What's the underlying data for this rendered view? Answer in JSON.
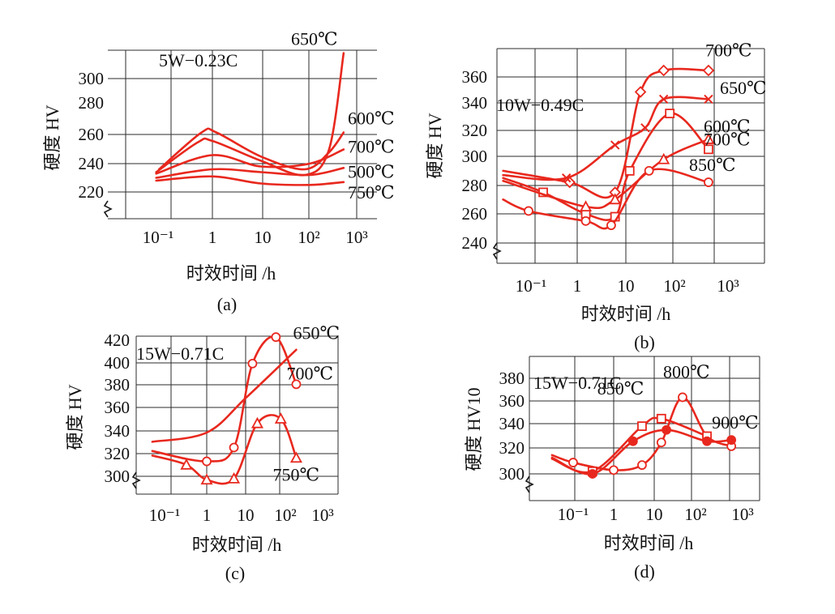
{
  "chart_data": [
    {
      "panel": "(a)",
      "type": "line",
      "title": "5W−0.23C",
      "xlabel": "时效时间 /h",
      "ylabel": "硬度 HV",
      "x_scale": "log",
      "xticks": [
        "10⁻¹",
        "1",
        "10",
        "10²",
        "10³"
      ],
      "yticks": [
        "220",
        "240",
        "260",
        "280",
        "300"
      ],
      "ylim": [
        215,
        320
      ],
      "series": [
        {
          "name": "650℃",
          "label_at": [
            500,
            318
          ],
          "points": [
            [
              0.07,
              234
            ],
            [
              0.5,
              255
            ],
            [
              1,
              256
            ],
            [
              10,
              242
            ],
            [
              80,
              232
            ],
            [
              250,
              250
            ],
            [
              500,
              318
            ]
          ]
        },
        {
          "name": "600℃",
          "label_at": [
            500,
            262
          ],
          "points": [
            [
              0.08,
              236
            ],
            [
              0.6,
              262
            ],
            [
              1.2,
              262
            ],
            [
              10,
              245
            ],
            [
              80,
              236
            ],
            [
              250,
              248
            ],
            [
              500,
              262
            ]
          ]
        },
        {
          "name": "700℃",
          "label_at": [
            500,
            250
          ],
          "points": [
            [
              0.07,
              233
            ],
            [
              1,
              246
            ],
            [
              10,
              238
            ],
            [
              100,
              240
            ],
            [
              500,
              250
            ]
          ]
        },
        {
          "name": "500℃",
          "label_at": [
            500,
            237
          ],
          "points": [
            [
              0.07,
              230
            ],
            [
              1,
              236
            ],
            [
              10,
              234
            ],
            [
              100,
              232
            ],
            [
              500,
              237
            ]
          ]
        },
        {
          "name": "750℃",
          "label_at": [
            500,
            227
          ],
          "points": [
            [
              0.07,
              228
            ],
            [
              1,
              231
            ],
            [
              10,
              226
            ],
            [
              100,
              225
            ],
            [
              500,
              227
            ]
          ]
        }
      ]
    },
    {
      "panel": "(b)",
      "type": "line",
      "title": "10W−0.49C",
      "xlabel": "时效时间 /h",
      "ylabel": "硬度 HV",
      "x_scale": "log",
      "xticks": [
        "10⁻¹",
        "1",
        "10",
        "10²",
        "10³"
      ],
      "yticks": [
        "240",
        "260",
        "280",
        "300",
        "320",
        "340",
        "360"
      ],
      "ylim": [
        233,
        370
      ],
      "series": [
        {
          "name": "700℃",
          "label_at": [
            500,
            362
          ],
          "marker": "diamond",
          "points": [
            [
              0.03,
              290
            ],
            [
              0.7,
              282
            ],
            [
              6,
              275
            ],
            [
              20,
              345
            ],
            [
              60,
              360
            ],
            [
              500,
              360
            ]
          ]
        },
        {
          "name": "650℃",
          "label_at": [
            500,
            339
          ],
          "marker": "x",
          "points": [
            [
              0.03,
              287
            ],
            [
              0.6,
              285
            ],
            [
              6,
              308
            ],
            [
              25,
              320
            ],
            [
              60,
              340
            ],
            [
              500,
              340
            ]
          ]
        },
        {
          "name": "600℃",
          "label_at": [
            500,
            310
          ],
          "marker": "square",
          "points": [
            [
              0.03,
              285
            ],
            [
              0.2,
              275
            ],
            [
              1.5,
              260
            ],
            [
              6,
              258
            ],
            [
              12,
              290
            ],
            [
              80,
              330
            ],
            [
              500,
              305
            ]
          ]
        },
        {
          "name": "700℃",
          "label_at": [
            500,
            311
          ],
          "marker": "triangle",
          "points": [
            [
              0.03,
              283
            ],
            [
              1.5,
              265
            ],
            [
              6,
              270
            ],
            [
              60,
              298
            ],
            [
              500,
              312
            ]
          ]
        },
        {
          "name": "850℃",
          "label_at": [
            500,
            282
          ],
          "marker": "circle",
          "points": [
            [
              0.03,
              270
            ],
            [
              0.1,
              262
            ],
            [
              1.5,
              255
            ],
            [
              5,
              252
            ],
            [
              30,
              290
            ],
            [
              500,
              282
            ]
          ]
        }
      ]
    },
    {
      "panel": "(c)",
      "type": "line",
      "title": "15W−0.71C",
      "xlabel": "时效时间 /h",
      "ylabel": "硬度 HV",
      "x_scale": "log",
      "xticks": [
        "10⁻¹",
        "1",
        "10",
        "10²",
        "10³"
      ],
      "yticks": [
        "300",
        "320",
        "340",
        "360",
        "380",
        "400",
        "420"
      ],
      "ylim": [
        292,
        428
      ],
      "series": [
        {
          "name": "650℃",
          "label_at": [
            200,
            418
          ],
          "marker": "none",
          "points": [
            [
              0.04,
              330
            ],
            [
              1,
              338
            ],
            [
              10,
              368
            ],
            [
              200,
              410
            ]
          ]
        },
        {
          "name": "700℃",
          "label_at": [
            200,
            380
          ],
          "marker": "circle",
          "points": [
            [
              0.04,
              322
            ],
            [
              1,
              313
            ],
            [
              5,
              325
            ],
            [
              15,
              398
            ],
            [
              60,
              421
            ],
            [
              200,
              380
            ]
          ]
        },
        {
          "name": "750℃",
          "label_at": [
            200,
            316
          ],
          "marker": "triangle",
          "points": [
            [
              0.04,
              318
            ],
            [
              0.3,
              310
            ],
            [
              1,
              297
            ],
            [
              5,
              298
            ],
            [
              20,
              346
            ],
            [
              80,
              350
            ],
            [
              200,
              316
            ]
          ]
        }
      ]
    },
    {
      "panel": "(d)",
      "type": "line",
      "title": "15W−0.71C",
      "xlabel": "时效时间 /h",
      "ylabel": "硬度 HV10",
      "x_scale": "log",
      "xticks": [
        "10⁻¹",
        "1",
        "10",
        "10²",
        "10³"
      ],
      "yticks": [
        "300",
        "320",
        "340",
        "360",
        "380"
      ],
      "ylim": [
        293,
        385
      ],
      "series": [
        {
          "name": "800℃",
          "label_at": [
            50,
            361
          ],
          "marker": "circle",
          "points": [
            [
              0.03,
              315
            ],
            [
              0.1,
              309
            ],
            [
              1,
              303
            ],
            [
              5,
              307
            ],
            [
              15,
              325
            ],
            [
              50,
              361
            ],
            [
              200,
              330
            ],
            [
              800,
              322
            ]
          ]
        },
        {
          "name": "850℃",
          "label_at": [
            15,
            344
          ],
          "marker": "square",
          "points": [
            [
              0.03,
              312
            ],
            [
              0.3,
              302
            ],
            [
              5,
              338
            ],
            [
              15,
              344
            ],
            [
              200,
              330
            ]
          ]
        },
        {
          "name": "900℃",
          "label_at": [
            800,
            327
          ],
          "marker": "filled-circle",
          "points": [
            [
              0.03,
              313
            ],
            [
              0.3,
              300
            ],
            [
              3,
              326
            ],
            [
              20,
              335
            ],
            [
              200,
              326
            ],
            [
              800,
              327
            ]
          ]
        }
      ]
    }
  ]
}
